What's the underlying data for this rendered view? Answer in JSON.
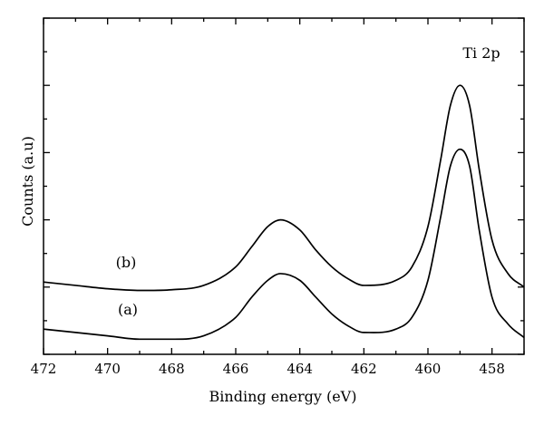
{
  "chart_data": {
    "type": "line",
    "title": "",
    "annotation": "Ti 2p",
    "xlabel": "Binding energy (eV)",
    "ylabel": "Counts (a.u)",
    "xlim": [
      472,
      457
    ],
    "x_reversed": true,
    "x_ticks": [
      472,
      470,
      468,
      466,
      464,
      462,
      460,
      458
    ],
    "x_tick_labels": [
      "472",
      "470",
      "468",
      "466",
      "464",
      "462",
      "460",
      "458"
    ],
    "ylim": [
      0,
      100
    ],
    "y_tick_labels_shown": false,
    "grid": false,
    "legend": "none",
    "series": [
      {
        "name": "(b)",
        "x": [
          472,
          471,
          470,
          469,
          468,
          467,
          466,
          465.5,
          465,
          464.6,
          464,
          463.5,
          463,
          462.5,
          462,
          461,
          460.5,
          460,
          459.6,
          459.3,
          459,
          458.7,
          458.4,
          458,
          457.5,
          457
        ],
        "y": [
          21.5,
          20.5,
          19.5,
          19,
          19.2,
          20.5,
          26,
          32,
          38,
          40,
          37,
          31,
          26,
          22.5,
          20.5,
          22,
          26,
          38,
          58,
          74,
          80,
          74,
          55,
          34,
          24,
          20
        ]
      },
      {
        "name": "(a)",
        "x": [
          472,
          471,
          470,
          469,
          468,
          467,
          466,
          465.5,
          465,
          464.6,
          464,
          463.5,
          463,
          462.5,
          462,
          461,
          460.5,
          460,
          459.6,
          459.3,
          459,
          458.7,
          458.4,
          458,
          457.5,
          457
        ],
        "y": [
          7.5,
          6.5,
          5.5,
          4.5,
          4.5,
          5.5,
          11,
          17,
          22,
          24,
          22,
          17,
          12,
          8.5,
          6.5,
          7.5,
          11,
          22,
          41,
          56,
          61,
          56,
          37,
          17,
          9,
          5
        ]
      }
    ],
    "series_labels": [
      "(b)",
      "(a)"
    ]
  }
}
